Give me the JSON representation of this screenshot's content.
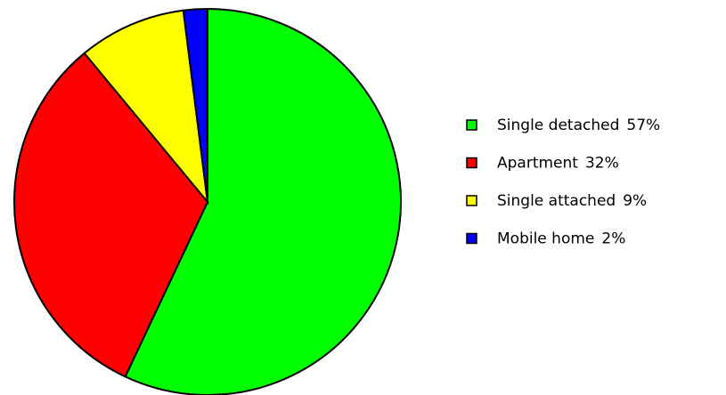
{
  "chart_data": {
    "type": "pie",
    "categories": [
      "Single detached",
      "Apartment",
      "Single attached",
      "Mobile home"
    ],
    "values": [
      57,
      32,
      9,
      2
    ],
    "value_labels": [
      "57%",
      "32%",
      "9%",
      "2%"
    ],
    "colors": [
      "#00ff00",
      "#ff0000",
      "#ffff00",
      "#0000ff"
    ],
    "legend": "right"
  }
}
